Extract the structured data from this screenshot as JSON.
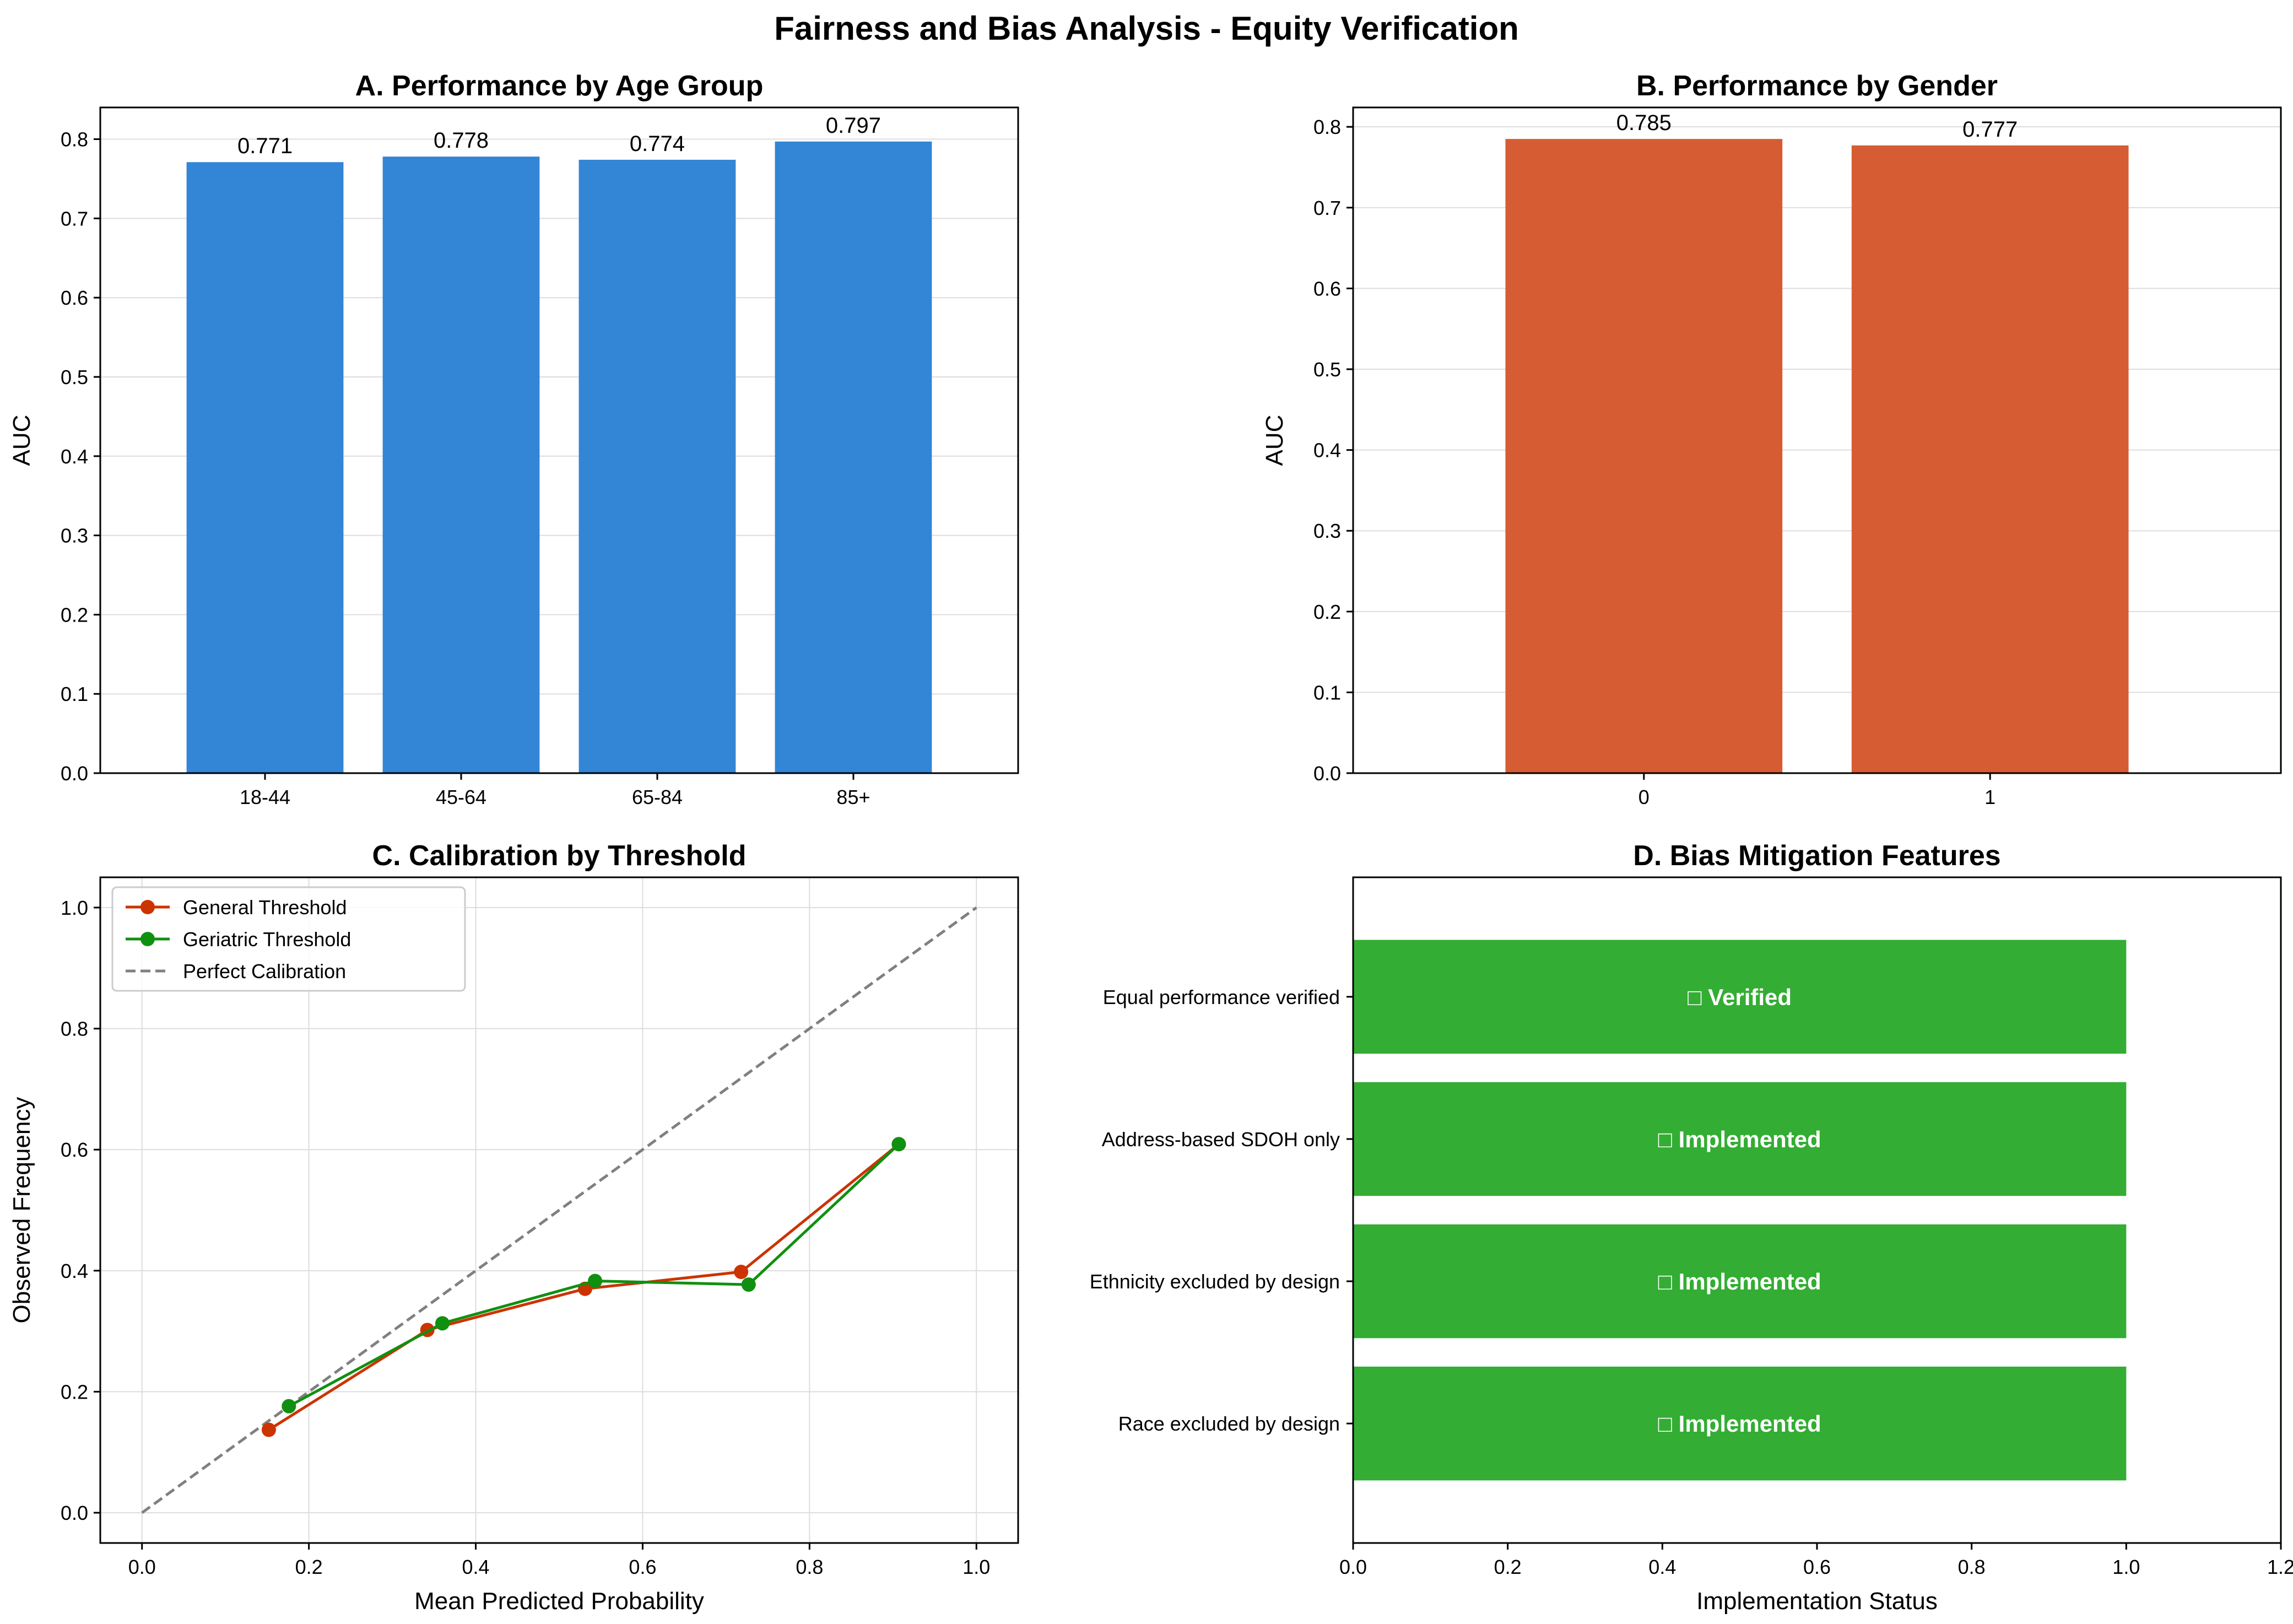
{
  "figure": {
    "title": "Fairness and Bias Analysis - Equity Verification"
  },
  "chart_data": [
    {
      "id": "A",
      "type": "bar",
      "title": "A. Performance by Age Group",
      "xlabel": "",
      "ylabel": "AUC",
      "categories": [
        "18-44",
        "45-64",
        "65-84",
        "85+"
      ],
      "values": [
        0.771,
        0.778,
        0.774,
        0.797
      ],
      "data_labels": [
        "0.771",
        "0.778",
        "0.774",
        "0.797"
      ],
      "ylim": [
        0,
        0.84
      ],
      "yticks": [
        0.0,
        0.1,
        0.2,
        0.3,
        0.4,
        0.5,
        0.6,
        0.7,
        0.8
      ],
      "ytick_labels": [
        "0.0",
        "0.1",
        "0.2",
        "0.3",
        "0.4",
        "0.5",
        "0.6",
        "0.7",
        "0.8"
      ],
      "color": "#3385d6",
      "grid": "y"
    },
    {
      "id": "B",
      "type": "bar",
      "title": "B. Performance by Gender",
      "xlabel": "",
      "ylabel": "AUC",
      "categories": [
        "0",
        "1"
      ],
      "values": [
        0.785,
        0.777
      ],
      "data_labels": [
        "0.785",
        "0.777"
      ],
      "ylim": [
        0,
        0.824
      ],
      "yticks": [
        0.0,
        0.1,
        0.2,
        0.3,
        0.4,
        0.5,
        0.6,
        0.7,
        0.8
      ],
      "ytick_labels": [
        "0.0",
        "0.1",
        "0.2",
        "0.3",
        "0.4",
        "0.5",
        "0.6",
        "0.7",
        "0.8"
      ],
      "color": "#d65c33",
      "grid": "y"
    },
    {
      "id": "C",
      "type": "line",
      "title": "C. Calibration by Threshold",
      "xlabel": "Mean Predicted Probability",
      "ylabel": "Observed Frequency",
      "xlim": [
        -0.05,
        1.05
      ],
      "ylim": [
        -0.05,
        1.05
      ],
      "xticks": [
        0.0,
        0.2,
        0.4,
        0.6,
        0.8,
        1.0
      ],
      "xtick_labels": [
        "0.0",
        "0.2",
        "0.4",
        "0.6",
        "0.8",
        "1.0"
      ],
      "yticks": [
        0.0,
        0.2,
        0.4,
        0.6,
        0.8,
        1.0
      ],
      "ytick_labels": [
        "0.0",
        "0.2",
        "0.4",
        "0.6",
        "0.8",
        "1.0"
      ],
      "grid": "both",
      "legend": "top-left",
      "series": [
        {
          "name": "General Threshold",
          "color": "#cc3300",
          "style": "solid",
          "marker": "circle",
          "x": [
            0.152,
            0.342,
            0.531,
            0.718,
            0.907
          ],
          "y": [
            0.137,
            0.302,
            0.37,
            0.398,
            0.609
          ]
        },
        {
          "name": "Geriatric Threshold",
          "color": "#109010",
          "style": "solid",
          "marker": "circle",
          "x": [
            0.176,
            0.36,
            0.543,
            0.727,
            0.907
          ],
          "y": [
            0.176,
            0.313,
            0.383,
            0.377,
            0.609
          ]
        },
        {
          "name": "Perfect Calibration",
          "color": "#808080",
          "style": "dashed",
          "marker": "none",
          "x": [
            0,
            1
          ],
          "y": [
            0,
            1
          ]
        }
      ]
    },
    {
      "id": "D",
      "type": "bar",
      "orientation": "horizontal",
      "title": "D. Bias Mitigation Features",
      "xlabel": "Implementation Status",
      "ylabel": "",
      "categories": [
        "Equal performance verified",
        "Address-based SDOH only",
        "Ethnicity excluded by design",
        "Race excluded by design"
      ],
      "values": [
        1,
        1,
        1,
        1
      ],
      "bar_labels": [
        "□ Verified",
        "□ Implemented",
        "□ Implemented",
        "□ Implemented"
      ],
      "xlim": [
        0,
        1.2
      ],
      "xticks": [
        0.0,
        0.2,
        0.4,
        0.6,
        0.8,
        1.0,
        1.2
      ],
      "xtick_labels": [
        "0.0",
        "0.2",
        "0.4",
        "0.6",
        "0.8",
        "1.0",
        "1.2"
      ],
      "color": "#33ad33",
      "label_color": "#ffffff",
      "grid": "none"
    }
  ]
}
